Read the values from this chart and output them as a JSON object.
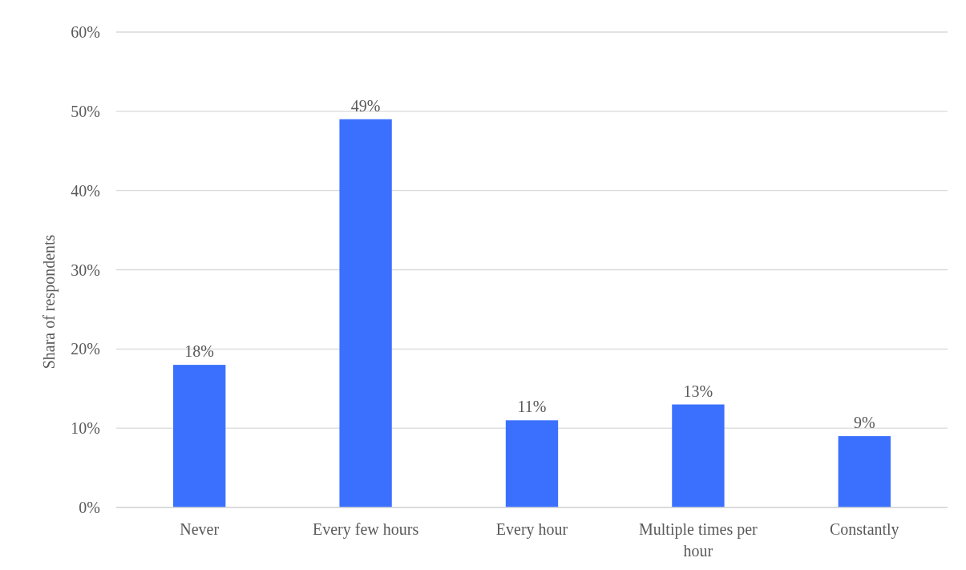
{
  "chart_data": {
    "type": "bar",
    "ylabel": "Shara of respondents",
    "categories": [
      "Never",
      "Every few hours",
      "Every hour",
      "Multiple times per hour",
      "Constantly"
    ],
    "values": [
      18,
      49,
      11,
      13,
      9
    ],
    "value_labels": [
      "18%",
      "49%",
      "11%",
      "13%",
      "9%"
    ],
    "color": "#3b70ff",
    "ylim": [
      0,
      60
    ],
    "yticks": [
      {
        "value": 0,
        "label": "0%"
      },
      {
        "value": 10,
        "label": "10%"
      },
      {
        "value": 20,
        "label": "20%"
      },
      {
        "value": 30,
        "label": "30%"
      },
      {
        "value": 40,
        "label": "40%"
      },
      {
        "value": 50,
        "label": "50%"
      },
      {
        "value": 60,
        "label": "60%"
      }
    ],
    "grid": "y"
  }
}
